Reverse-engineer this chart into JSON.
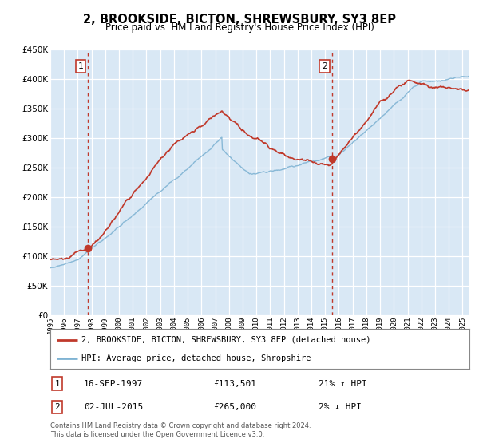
{
  "title": "2, BROOKSIDE, BICTON, SHREWSBURY, SY3 8EP",
  "subtitle": "Price paid vs. HM Land Registry's House Price Index (HPI)",
  "legend_line1": "2, BROOKSIDE, BICTON, SHREWSBURY, SY3 8EP (detached house)",
  "legend_line2": "HPI: Average price, detached house, Shropshire",
  "annotation1_date": "16-SEP-1997",
  "annotation1_price": "£113,501",
  "annotation1_hpi": "21% ↑ HPI",
  "annotation2_date": "02-JUL-2015",
  "annotation2_price": "£265,000",
  "annotation2_hpi": "2% ↓ HPI",
  "footnote": "Contains HM Land Registry data © Crown copyright and database right 2024.\nThis data is licensed under the Open Government Licence v3.0.",
  "vline1_x": 1997.75,
  "vline2_x": 2015.5,
  "sale1_x": 1997.75,
  "sale1_y": 113501,
  "sale2_x": 2015.5,
  "sale2_y": 265000,
  "ylim": [
    0,
    450000
  ],
  "xlim": [
    1995.0,
    2025.5
  ],
  "background_color": "#d9e8f5",
  "grid_color": "#ffffff",
  "red_color": "#c0392b",
  "blue_color": "#7fb3d3",
  "vline_color": "#c0392b",
  "box_color": "#c0392b"
}
